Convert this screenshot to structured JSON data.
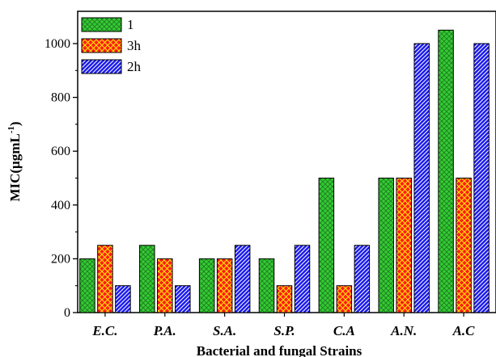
{
  "chart_data": {
    "type": "bar",
    "categories": [
      "E.C.",
      "P.A.",
      "S.A.",
      "S.P.",
      "C.A",
      "A.N.",
      "A.C"
    ],
    "series": [
      {
        "name": "1",
        "values": [
          200,
          250,
          200,
          200,
          500,
          500,
          1050
        ],
        "color": "#33cc33",
        "hatch": "crosshatch-dark"
      },
      {
        "name": "3h",
        "values": [
          250,
          200,
          200,
          100,
          100,
          500,
          500
        ],
        "color": "#ff1a1a",
        "hatch": "crosshatch-yellow"
      },
      {
        "name": "2h",
        "values": [
          100,
          100,
          250,
          250,
          250,
          1000,
          1000
        ],
        "color": "#1a1aee",
        "hatch": "diagonal-white"
      }
    ],
    "xlabel": "Bacterial and fungal Strains",
    "ylabel": "MIC(μgmL",
    "ylabel_superscript": "-1",
    "ylabel_close": ")",
    "ylim": [
      0,
      1120
    ],
    "yticks": [
      0,
      200,
      400,
      600,
      800,
      1000
    ],
    "grid": false,
    "legend_position": "top-left"
  }
}
